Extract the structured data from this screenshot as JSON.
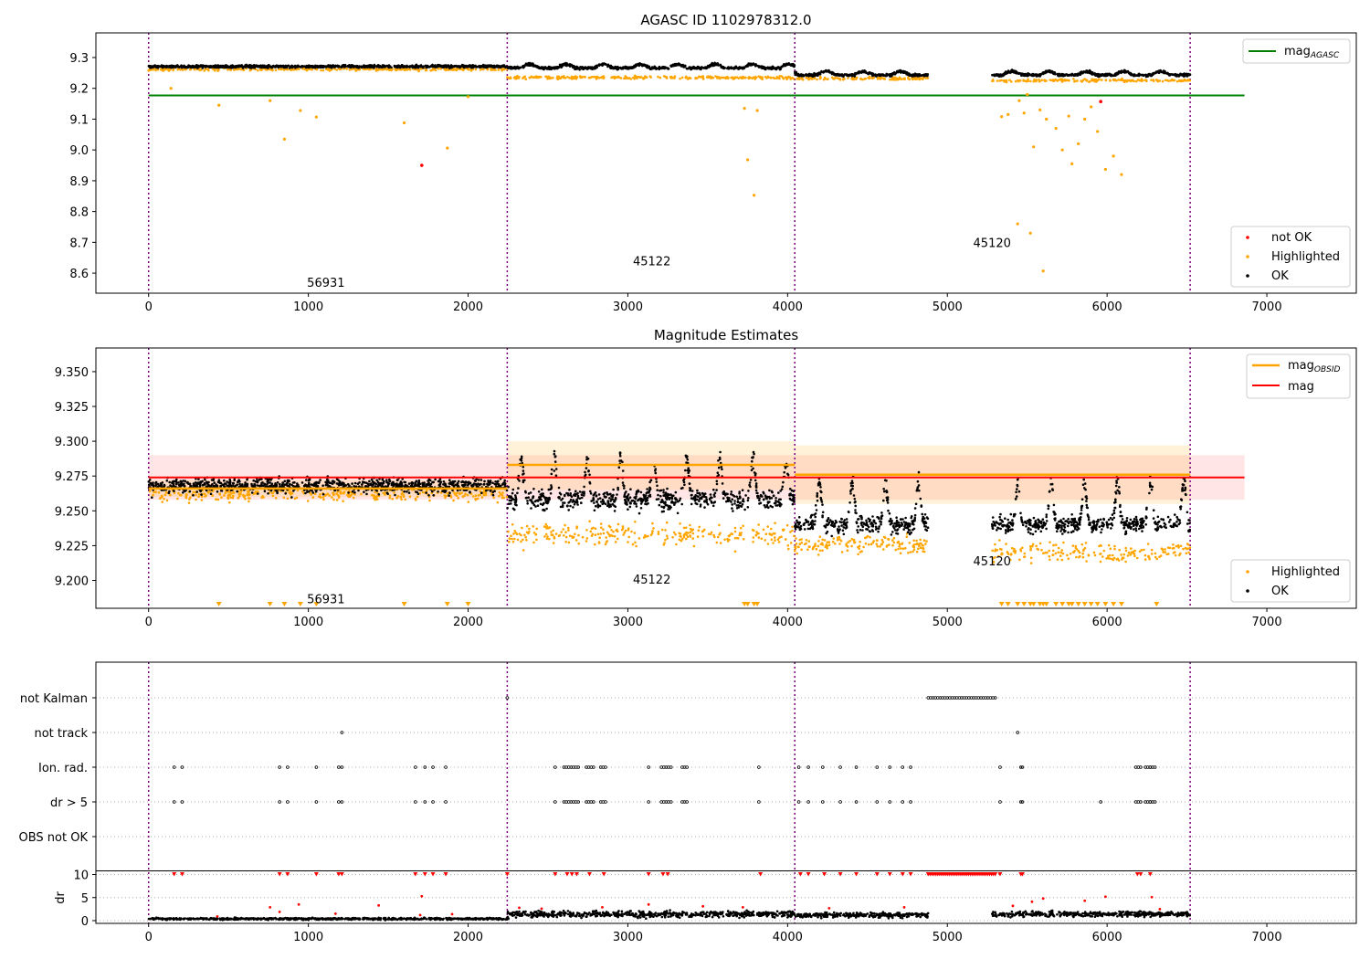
{
  "chart_data": [
    {
      "type": "scatter",
      "panel": "mag_agasc",
      "title": "AGASC ID 1102978312.0",
      "xlabel": "",
      "ylabel": "",
      "xlim": [
        -330,
        7560
      ],
      "ylim": [
        8.535,
        9.38
      ],
      "xticks": [
        0,
        1000,
        2000,
        3000,
        4000,
        5000,
        6000,
        7000
      ],
      "xtick_labels": [
        "0",
        "1000",
        "2000",
        "3000",
        "4000",
        "5000",
        "6000",
        "7000"
      ],
      "yticks": [
        8.6,
        8.7,
        8.8,
        8.9,
        9.0,
        9.1,
        9.2,
        9.3
      ],
      "ytick_labels": [
        "8.6",
        "8.7",
        "8.8",
        "8.9",
        "9.0",
        "9.1",
        "9.2",
        "9.3"
      ],
      "obsid_boundaries": [
        0,
        2245,
        4045,
        6520
      ],
      "obsid_labels": [
        {
          "x": 1110,
          "y": 8.57,
          "text": "56931"
        },
        {
          "x": 3150,
          "y": 8.64,
          "text": "45122"
        },
        {
          "x": 5280,
          "y": 8.7,
          "text": "45120"
        }
      ],
      "mag_agasc": {
        "value": 9.177,
        "x": [
          0,
          6860
        ]
      },
      "segments": [
        {
          "start": 0,
          "end": 2245,
          "ok_level": 9.271,
          "highlight_level": 9.262
        },
        {
          "start": 2245,
          "end": 4045,
          "ok_level": 9.266,
          "highlight_level": 9.235
        },
        {
          "start": 4045,
          "end": 4880,
          "ok_level": 9.243,
          "highlight_level": 9.232
        },
        {
          "start": 5280,
          "end": 6520,
          "ok_level": 9.243,
          "highlight_level": 9.225
        }
      ],
      "outliers_highlighted": [
        {
          "x": 440,
          "y": 9.145
        },
        {
          "x": 760,
          "y": 9.16
        },
        {
          "x": 850,
          "y": 9.035
        },
        {
          "x": 950,
          "y": 9.128
        },
        {
          "x": 1050,
          "y": 9.107
        },
        {
          "x": 1600,
          "y": 9.088
        },
        {
          "x": 1870,
          "y": 9.006
        },
        {
          "x": 140,
          "y": 9.2
        },
        {
          "x": 2000,
          "y": 9.173
        },
        {
          "x": 3730,
          "y": 9.135
        },
        {
          "x": 3750,
          "y": 8.968
        },
        {
          "x": 3790,
          "y": 8.853
        },
        {
          "x": 3810,
          "y": 9.128
        },
        {
          "x": 5340,
          "y": 9.108
        },
        {
          "x": 5380,
          "y": 9.115
        },
        {
          "x": 5440,
          "y": 8.76
        },
        {
          "x": 5480,
          "y": 9.12
        },
        {
          "x": 5520,
          "y": 8.73
        },
        {
          "x": 5540,
          "y": 9.01
        },
        {
          "x": 5580,
          "y": 9.13
        },
        {
          "x": 5600,
          "y": 8.607
        },
        {
          "x": 5620,
          "y": 9.1
        },
        {
          "x": 5680,
          "y": 9.07
        },
        {
          "x": 5720,
          "y": 9.0
        },
        {
          "x": 5760,
          "y": 9.11
        },
        {
          "x": 5780,
          "y": 8.955
        },
        {
          "x": 5820,
          "y": 9.02
        },
        {
          "x": 5860,
          "y": 9.1
        },
        {
          "x": 5900,
          "y": 9.14
        },
        {
          "x": 5940,
          "y": 9.06
        },
        {
          "x": 5990,
          "y": 8.937
        },
        {
          "x": 6040,
          "y": 8.98
        },
        {
          "x": 6090,
          "y": 8.92
        },
        {
          "x": 5450,
          "y": 9.16
        },
        {
          "x": 5500,
          "y": 9.18
        }
      ],
      "outliers_not_ok": [
        {
          "x": 1710,
          "y": 8.95
        },
        {
          "x": 5960,
          "y": 9.157
        }
      ],
      "legend_top": {
        "position": "top-right",
        "entries": [
          {
            "label": "mag",
            "sub": "AGASC",
            "color": "#008000"
          }
        ]
      },
      "legend_bottom": {
        "position": "lower-right",
        "entries": [
          {
            "label": "not OK",
            "color": "#ff0000"
          },
          {
            "label": "Highlighted",
            "color": "#ffa500"
          },
          {
            "label": "OK",
            "color": "#000000"
          }
        ]
      }
    },
    {
      "type": "scatter",
      "panel": "magnitude_estimates",
      "title": "Magnitude Estimates",
      "xlabel": "",
      "ylabel": "",
      "xlim": [
        -330,
        7560
      ],
      "ylim": [
        9.18,
        9.367
      ],
      "xticks": [
        0,
        1000,
        2000,
        3000,
        4000,
        5000,
        6000,
        7000
      ],
      "xtick_labels": [
        "0",
        "1000",
        "2000",
        "3000",
        "4000",
        "5000",
        "6000",
        "7000"
      ],
      "yticks": [
        9.2,
        9.225,
        9.25,
        9.275,
        9.3,
        9.325,
        9.35
      ],
      "ytick_labels": [
        "9.200",
        "9.225",
        "9.250",
        "9.275",
        "9.300",
        "9.325",
        "9.350"
      ],
      "obsid_boundaries": [
        0,
        2245,
        4045,
        6520
      ],
      "obsid_labels": [
        {
          "x": 1110,
          "y": 9.187,
          "text": "56931"
        },
        {
          "x": 3150,
          "y": 9.201,
          "text": "45122"
        },
        {
          "x": 5280,
          "y": 9.214,
          "text": "45120"
        }
      ],
      "mag_line": {
        "value": 9.274,
        "band": [
          9.258,
          9.29
        ],
        "x": [
          0,
          6860
        ]
      },
      "mag_obsid": [
        {
          "start": 0,
          "end": 2245,
          "value": 9.266,
          "band": [
            9.26,
            9.272
          ]
        },
        {
          "start": 2245,
          "end": 4045,
          "value": 9.283,
          "band": [
            9.265,
            9.3
          ]
        },
        {
          "start": 4045,
          "end": 6520,
          "value": 9.276,
          "band": [
            9.255,
            9.297
          ]
        }
      ],
      "segments": [
        {
          "start": 0,
          "end": 2245,
          "ok_level": 9.268,
          "ok_spread": 0.009,
          "highlight_level": 9.262,
          "highlight_spread": 0.004
        },
        {
          "start": 2245,
          "end": 4045,
          "ok_level": 9.258,
          "ok_spread": 0.012,
          "highlight_level": 9.233,
          "highlight_spread": 0.007
        },
        {
          "start": 4045,
          "end": 4880,
          "ok_level": 9.24,
          "ok_spread": 0.01,
          "highlight_level": 9.226,
          "highlight_spread": 0.005
        },
        {
          "start": 5280,
          "end": 6520,
          "ok_level": 9.24,
          "ok_spread": 0.01,
          "highlight_level": 9.22,
          "highlight_spread": 0.006
        }
      ],
      "clipped_markers_x": [
        440,
        760,
        850,
        950,
        1050,
        1600,
        1870,
        2000,
        3730,
        3750,
        3790,
        3810,
        5340,
        5380,
        5440,
        5480,
        5520,
        5540,
        5580,
        5600,
        5620,
        5680,
        5720,
        5760,
        5780,
        5820,
        5860,
        5900,
        5940,
        5990,
        6040,
        6090,
        6310
      ],
      "legend_top": {
        "position": "top-right",
        "entries": [
          {
            "label": "mag",
            "sub": "OBSID",
            "color": "#ffa500"
          },
          {
            "label": "mag",
            "sub": "",
            "color": "#ff0000"
          }
        ]
      },
      "legend_bottom": {
        "position": "lower-right",
        "entries": [
          {
            "label": "Highlighted",
            "color": "#ffa500"
          },
          {
            "label": "OK",
            "color": "#000000"
          }
        ]
      }
    },
    {
      "type": "scatter",
      "panel": "flags",
      "title": "",
      "xlabel": "",
      "ylabel": "",
      "xlim": [
        -330,
        7560
      ],
      "flag_labels": [
        "not Kalman",
        "not track",
        "Ion. rad.",
        "dr > 5",
        "OBS not OK"
      ],
      "obsid_boundaries": [
        0,
        2245,
        4045,
        6520
      ],
      "flags": {
        "not Kalman": {
          "points": [
            2245
          ],
          "ranges": [
            [
              4880,
              5300
            ]
          ]
        },
        "not track": {
          "points": [
            1210,
            5440
          ],
          "ranges": []
        },
        "Ion. rad.": {
          "points": [
            160,
            210,
            820,
            870,
            1050,
            1190,
            1210,
            1670,
            1730,
            1780,
            1860,
            2545,
            3130,
            3820,
            4070,
            4130,
            4220,
            4330,
            4430,
            4560,
            4640,
            4720,
            4770,
            5330,
            5460,
            5470,
            6270
          ],
          "ranges": [
            [
              2600,
              2700
            ],
            [
              2740,
              2790
            ],
            [
              2830,
              2870
            ],
            [
              3210,
              3270
            ],
            [
              3340,
              3370
            ],
            [
              6180,
              6220
            ],
            [
              6240,
              6300
            ]
          ]
        },
        "dr > 5": {
          "points": [
            160,
            210,
            820,
            870,
            1050,
            1190,
            1210,
            1670,
            1730,
            1780,
            1860,
            2545,
            3130,
            3820,
            4070,
            4130,
            4220,
            4330,
            4430,
            4560,
            4640,
            4720,
            4770,
            5330,
            5460,
            5470,
            5960,
            6270
          ],
          "ranges": [
            [
              2600,
              2700
            ],
            [
              2740,
              2790
            ],
            [
              2830,
              2870
            ],
            [
              3210,
              3270
            ],
            [
              3340,
              3370
            ],
            [
              6180,
              6220
            ],
            [
              6240,
              6300
            ]
          ]
        },
        "OBS not OK": {
          "points": [],
          "ranges": []
        }
      }
    },
    {
      "type": "scatter",
      "panel": "dr",
      "title": "",
      "xlabel": "",
      "ylabel": "dr",
      "xlim": [
        -330,
        7560
      ],
      "ylim": [
        -0.6,
        10.7
      ],
      "yticks": [
        0,
        5,
        10
      ],
      "ytick_labels": [
        "0",
        "5",
        "10"
      ],
      "xticks": [
        0,
        1000,
        2000,
        3000,
        4000,
        5000,
        6000,
        7000
      ],
      "xtick_labels": [
        "0",
        "1000",
        "2000",
        "3000",
        "4000",
        "5000",
        "6000",
        "7000"
      ],
      "obsid_boundaries": [
        0,
        2245,
        4045,
        6520
      ],
      "segments": [
        {
          "start": 0,
          "end": 2245,
          "level": 0.4,
          "spread": 0.35
        },
        {
          "start": 2245,
          "end": 4045,
          "level": 1.4,
          "spread": 1.1
        },
        {
          "start": 4045,
          "end": 4880,
          "level": 1.2,
          "spread": 0.9
        },
        {
          "start": 5280,
          "end": 6520,
          "level": 1.4,
          "spread": 1.0
        }
      ],
      "clipped_range": [
        4880,
        5300
      ],
      "clipped_points_x": [
        2245,
        2545,
        2620,
        2650,
        2680,
        2760,
        2850,
        3130,
        3220,
        3250,
        3830,
        4080,
        4130,
        4230,
        4330,
        4430,
        4560,
        4640,
        4720,
        4770,
        5330,
        5460,
        5470,
        6190,
        6210,
        6270,
        160,
        210,
        820,
        870,
        1050,
        1190,
        1210,
        1670,
        1730,
        1780,
        1860
      ],
      "spikes": [
        {
          "x": 430,
          "y": 0.9
        },
        {
          "x": 760,
          "y": 2.9
        },
        {
          "x": 820,
          "y": 1.9
        },
        {
          "x": 940,
          "y": 3.5
        },
        {
          "x": 1170,
          "y": 1.5
        },
        {
          "x": 1440,
          "y": 3.3
        },
        {
          "x": 1700,
          "y": 1.2
        },
        {
          "x": 1710,
          "y": 5.3
        },
        {
          "x": 1900,
          "y": 1.4
        },
        {
          "x": 2320,
          "y": 2.8
        },
        {
          "x": 2460,
          "y": 2.6
        },
        {
          "x": 2840,
          "y": 2.9
        },
        {
          "x": 3130,
          "y": 3.5
        },
        {
          "x": 3470,
          "y": 3.1
        },
        {
          "x": 3720,
          "y": 2.9
        },
        {
          "x": 4260,
          "y": 2.7
        },
        {
          "x": 4730,
          "y": 2.9
        },
        {
          "x": 5410,
          "y": 3.2
        },
        {
          "x": 5530,
          "y": 4.1
        },
        {
          "x": 5600,
          "y": 4.8
        },
        {
          "x": 5860,
          "y": 4.3
        },
        {
          "x": 5990,
          "y": 5.2
        },
        {
          "x": 6280,
          "y": 5.1
        },
        {
          "x": 6330,
          "y": 2.5
        }
      ]
    }
  ]
}
